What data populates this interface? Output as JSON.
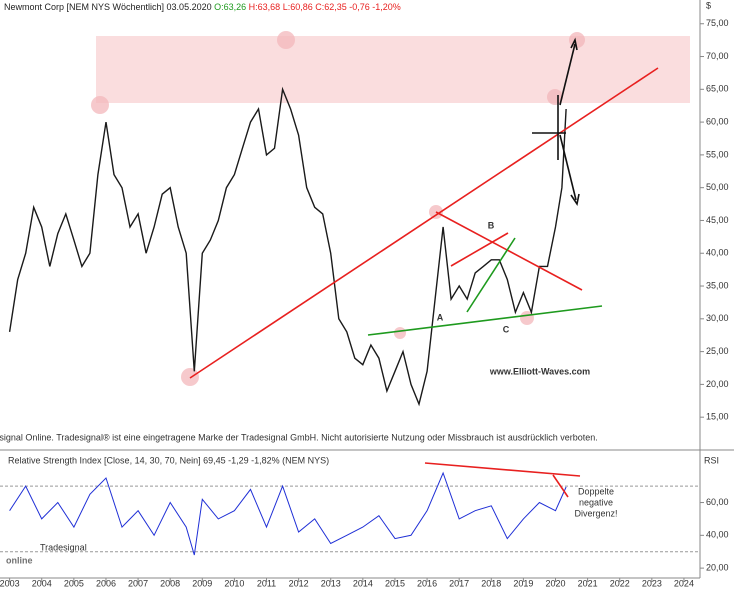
{
  "chart_data": [
    {
      "type": "line",
      "title": "Newmont Corp [NEM NYS  Wöchentlich] 03.05.2020",
      "quote": [
        "O:63,26",
        "H:63,68",
        "L:60,86",
        "C:62,35 -0,76 -1,20%"
      ],
      "currency": "$",
      "annotations": [
        "A",
        "B",
        "C",
        "www.Elliott-Waves.com",
        "Tradesignal Online. Tradesignal® ist eine eingetragene Marke der Tradesignal GmbH. Nicht autorisierte Nutzung oder Missbrauch ist ausdrücklich verboten."
      ],
      "x": [
        2003.0,
        2003.25,
        2003.5,
        2003.75,
        2004.0,
        2004.25,
        2004.5,
        2004.75,
        2005.0,
        2005.25,
        2005.5,
        2005.75,
        2006.0,
        2006.25,
        2006.5,
        2006.75,
        2007.0,
        2007.25,
        2007.5,
        2007.75,
        2008.0,
        2008.25,
        2008.5,
        2008.75,
        2009.0,
        2009.25,
        2009.5,
        2009.75,
        2010.0,
        2010.25,
        2010.5,
        2010.75,
        2011.0,
        2011.25,
        2011.5,
        2011.75,
        2012.0,
        2012.25,
        2012.5,
        2012.75,
        2013.0,
        2013.25,
        2013.5,
        2013.75,
        2014.0,
        2014.25,
        2014.5,
        2014.75,
        2015.0,
        2015.25,
        2015.5,
        2015.75,
        2016.0,
        2016.25,
        2016.5,
        2016.75,
        2017.0,
        2017.25,
        2017.5,
        2017.75,
        2018.0,
        2018.25,
        2018.5,
        2018.75,
        2019.0,
        2019.25,
        2019.5,
        2019.75,
        2020.0,
        2020.2,
        2020.33
      ],
      "series": [
        {
          "name": "NEM",
          "color": "#1a1a1a",
          "values": [
            28,
            36,
            40,
            47,
            44,
            38,
            43,
            46,
            42,
            38,
            40,
            52,
            60,
            52,
            50,
            44,
            46,
            40,
            44,
            49,
            50,
            44,
            40,
            22,
            40,
            42,
            45,
            50,
            52,
            56,
            60,
            62,
            55,
            56,
            65,
            62,
            58,
            50,
            47,
            46,
            40,
            30,
            28,
            24,
            23,
            26,
            24,
            19,
            22,
            25,
            20,
            17,
            22,
            33,
            44,
            33,
            35,
            33,
            37,
            38,
            39,
            39,
            36,
            31,
            34,
            31,
            38,
            38,
            44,
            50,
            62
          ]
        }
      ],
      "xlim": [
        2002.7,
        2024.5
      ],
      "ylim": [
        10.3,
        77.4
      ],
      "yticks": [
        {
          "value": 15,
          "label": "15,00"
        },
        {
          "value": 20,
          "label": "20,00"
        },
        {
          "value": 25,
          "label": "25,00"
        },
        {
          "value": 30,
          "label": "30,00"
        },
        {
          "value": 35,
          "label": "35,00"
        },
        {
          "value": 40,
          "label": "40,00"
        },
        {
          "value": 45,
          "label": "45,00"
        },
        {
          "value": 50,
          "label": "50,00"
        },
        {
          "value": 55,
          "label": "55,00"
        },
        {
          "value": 60,
          "label": "60,00"
        },
        {
          "value": 65,
          "label": "65,00"
        },
        {
          "value": 70,
          "label": "70,00"
        },
        {
          "value": 75,
          "label": "75,00"
        }
      ]
    },
    {
      "type": "line",
      "title": "Relative Strength Index [Close, 14, 30, 70, Nein] 69,45 -1,29 -1,82% (NEM NYS)",
      "axis_label": "RSI",
      "annotations": [
        "Doppelte",
        "negative",
        "Divergenz!"
      ],
      "x": [
        2003.0,
        2003.5,
        2004.0,
        2004.5,
        2005.0,
        2005.5,
        2006.0,
        2006.5,
        2007.0,
        2007.5,
        2008.0,
        2008.5,
        2008.75,
        2009.0,
        2009.5,
        2010.0,
        2010.5,
        2011.0,
        2011.5,
        2012.0,
        2012.5,
        2013.0,
        2013.5,
        2014.0,
        2014.5,
        2015.0,
        2015.5,
        2016.0,
        2016.5,
        2017.0,
        2017.5,
        2018.0,
        2018.5,
        2019.0,
        2019.5,
        2020.0,
        2020.33
      ],
      "series": [
        {
          "name": "RSI",
          "color": "#1f2fd6",
          "values": [
            55,
            70,
            50,
            60,
            45,
            65,
            75,
            45,
            55,
            40,
            60,
            45,
            28,
            62,
            50,
            55,
            68,
            45,
            70,
            42,
            50,
            35,
            40,
            45,
            52,
            38,
            40,
            55,
            78,
            50,
            55,
            58,
            38,
            50,
            60,
            55,
            69.45
          ]
        }
      ],
      "reference_lines": [
        30,
        70
      ],
      "xlim": [
        2002.7,
        2024.5
      ],
      "ylim": [
        15.8,
        89
      ],
      "yticks": [
        {
          "value": 20,
          "label": "20,00"
        },
        {
          "value": 40,
          "label": "40,00"
        },
        {
          "value": 60,
          "label": "60,00"
        }
      ],
      "xticks": [
        2003,
        2004,
        2005,
        2006,
        2007,
        2008,
        2009,
        2010,
        2011,
        2012,
        2013,
        2014,
        2015,
        2016,
        2017,
        2018,
        2019,
        2020,
        2021,
        2022,
        2023,
        2024
      ]
    }
  ],
  "logo": {
    "small": "Tradesignal",
    "big": "online"
  }
}
